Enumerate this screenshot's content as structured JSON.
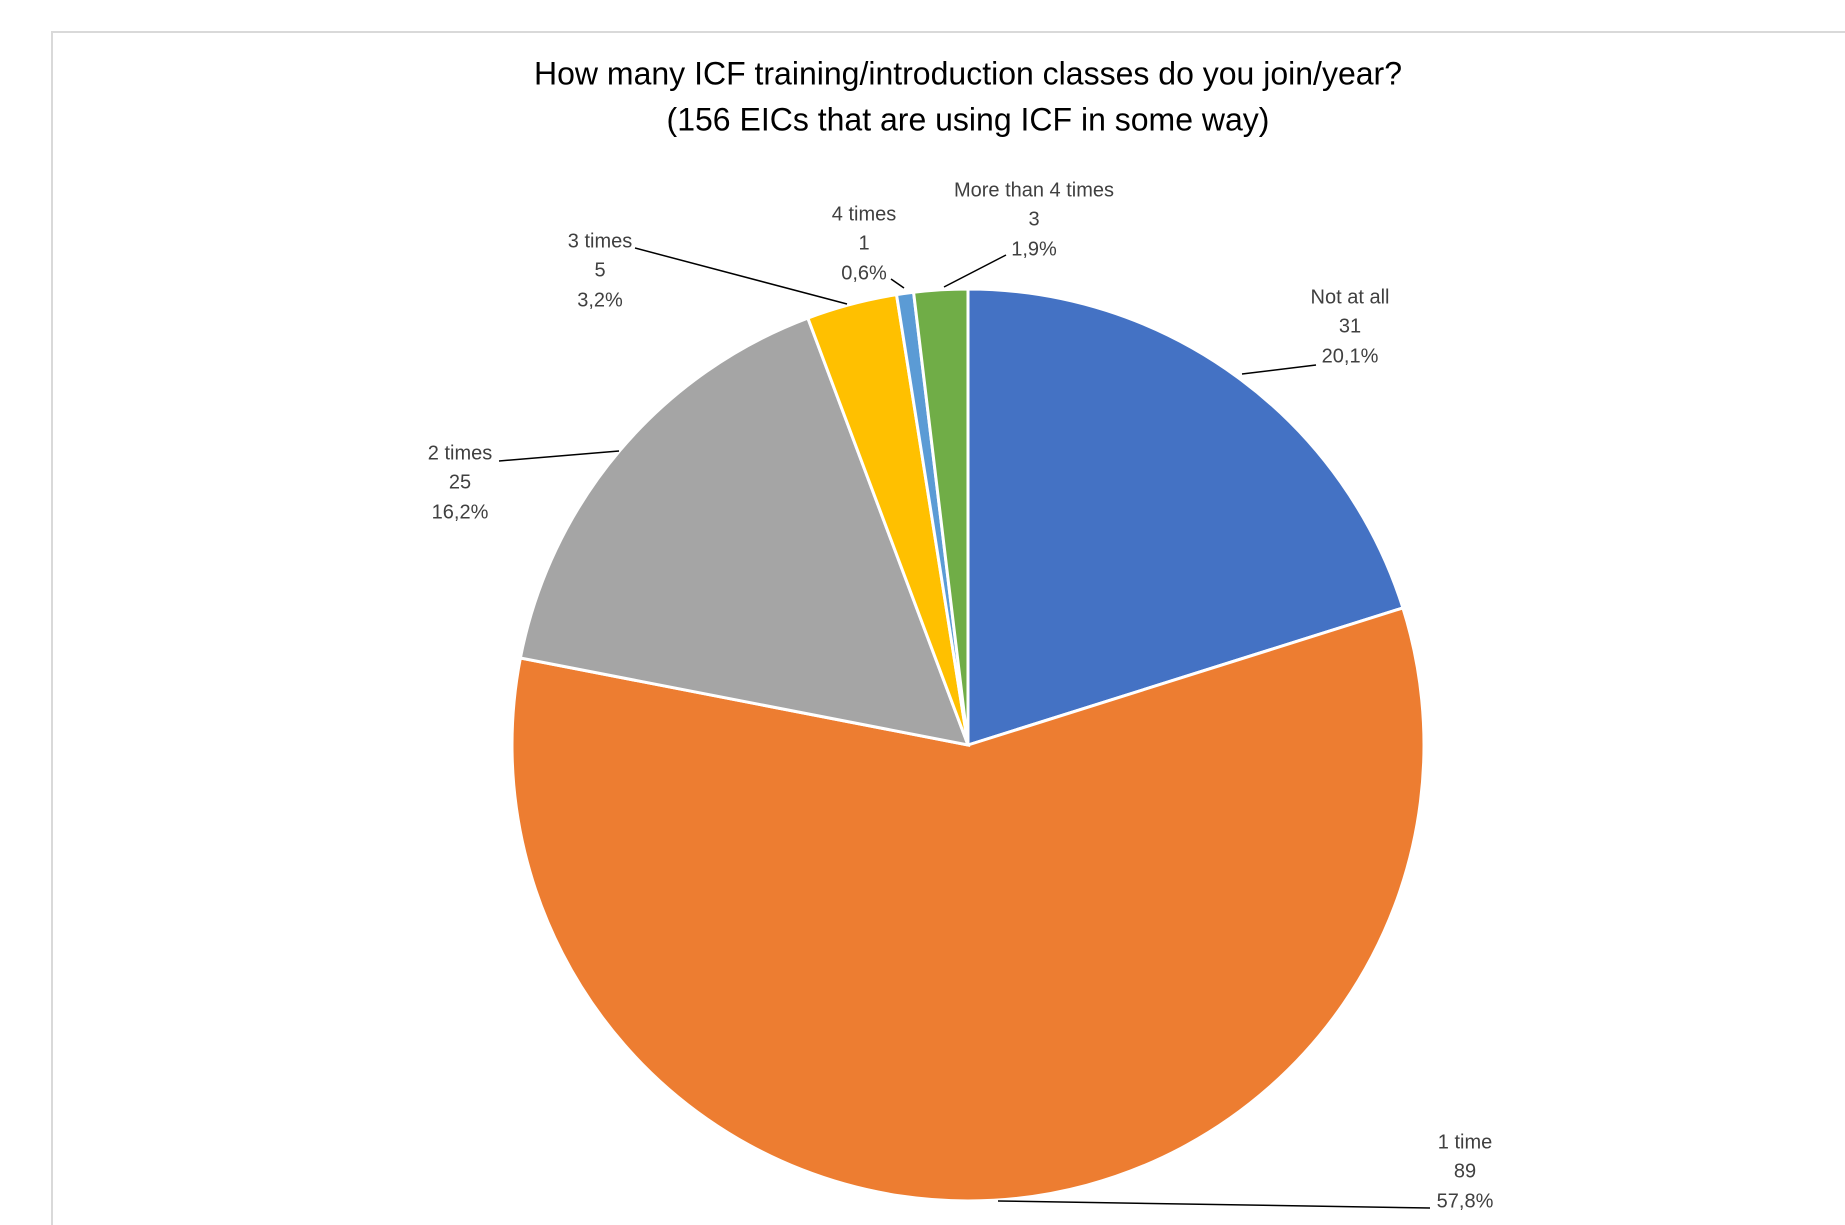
{
  "chart_data": {
    "type": "pie",
    "title": "How many ICF training/introduction classes do you join/year?",
    "subtitle": "(156 EICs that are using ICF in some way)",
    "categories": [
      "Not at all",
      "1 time",
      "2 times",
      "3 times",
      "4 times",
      "More than 4 times"
    ],
    "counts": [
      31,
      89,
      25,
      5,
      1,
      3
    ],
    "values": [
      20.1,
      57.8,
      16.2,
      3.2,
      0.6,
      1.9
    ],
    "value_labels": [
      "20,1%",
      "57,8%",
      "16,2%",
      "3,2%",
      "0,6%",
      "1,9%"
    ],
    "colors": [
      "#4472c4",
      "#ed7d31",
      "#a5a5a5",
      "#ffc000",
      "#5b9bd5",
      "#70ad47"
    ]
  }
}
